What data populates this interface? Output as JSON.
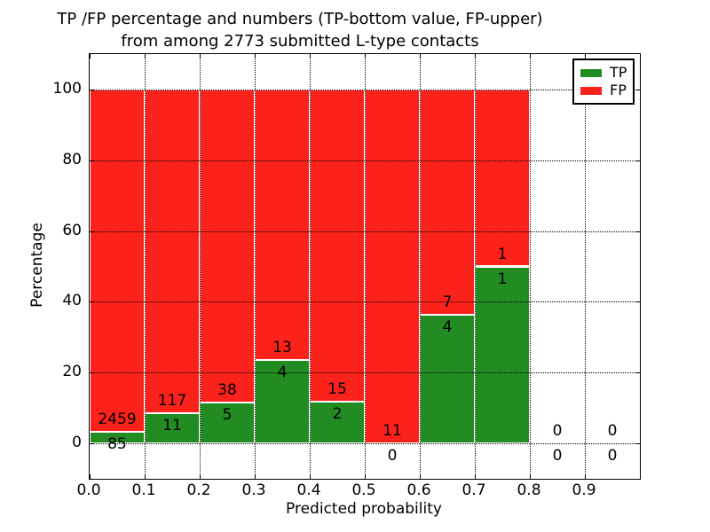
{
  "chart_data": {
    "type": "bar",
    "stacked": true,
    "title_line1": "TP /FP percentage and numbers (TP-bottom value, FP-upper)",
    "title_line2": "from among 2773 submitted L-type contacts",
    "xlabel": "Predicted probability",
    "ylabel": "Percentage",
    "xlim": [
      0.0,
      1.0
    ],
    "ylim": [
      -10,
      110
    ],
    "xticks": [
      "0.0",
      "0.1",
      "0.2",
      "0.3",
      "0.4",
      "0.5",
      "0.6",
      "0.7",
      "0.8",
      "0.9"
    ],
    "yticks": [
      0,
      20,
      40,
      60,
      80,
      100
    ],
    "grid": "dotted",
    "legend": {
      "position": "upper right",
      "entries": [
        {
          "label": "TP",
          "color": "#228b22"
        },
        {
          "label": "FP",
          "color": "#fa221a"
        }
      ]
    },
    "bins": [
      {
        "x_start": 0.0,
        "x_end": 0.1,
        "tp_count": 85,
        "fp_count": 2459,
        "tp_pct": 3.34,
        "has_bar": true
      },
      {
        "x_start": 0.1,
        "x_end": 0.2,
        "tp_count": 11,
        "fp_count": 117,
        "tp_pct": 8.59,
        "has_bar": true
      },
      {
        "x_start": 0.2,
        "x_end": 0.3,
        "tp_count": 5,
        "fp_count": 38,
        "tp_pct": 11.63,
        "has_bar": true
      },
      {
        "x_start": 0.3,
        "x_end": 0.4,
        "tp_count": 4,
        "fp_count": 13,
        "tp_pct": 23.53,
        "has_bar": true
      },
      {
        "x_start": 0.4,
        "x_end": 0.5,
        "tp_count": 2,
        "fp_count": 15,
        "tp_pct": 11.76,
        "has_bar": true
      },
      {
        "x_start": 0.5,
        "x_end": 0.6,
        "tp_count": 0,
        "fp_count": 11,
        "tp_pct": 0,
        "has_bar": true
      },
      {
        "x_start": 0.6,
        "x_end": 0.7,
        "tp_count": 4,
        "fp_count": 7,
        "tp_pct": 36.36,
        "has_bar": true
      },
      {
        "x_start": 0.7,
        "x_end": 0.8,
        "tp_count": 1,
        "fp_count": 1,
        "tp_pct": 50.0,
        "has_bar": true
      },
      {
        "x_start": 0.8,
        "x_end": 0.9,
        "tp_count": 0,
        "fp_count": 0,
        "tp_pct": 0,
        "has_bar": false
      },
      {
        "x_start": 0.9,
        "x_end": 1.0,
        "tp_count": 0,
        "fp_count": 0,
        "tp_pct": 0,
        "has_bar": false
      }
    ]
  },
  "colors": {
    "tp": "#228b22",
    "fp": "#fa221a",
    "bar_edge": "#ffffff",
    "text": "#000000",
    "background": "#ffffff"
  }
}
